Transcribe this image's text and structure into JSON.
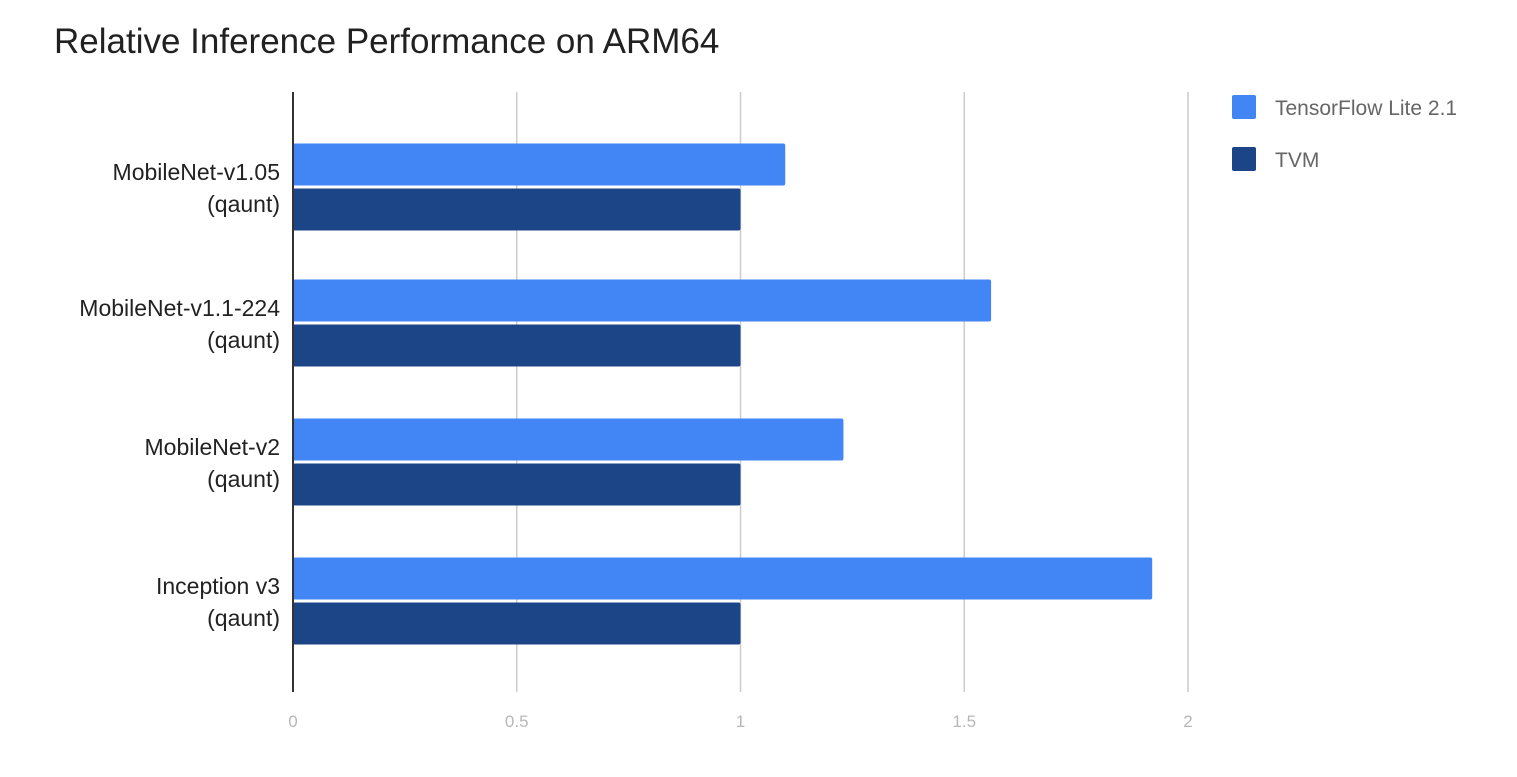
{
  "chart_data": {
    "type": "bar",
    "orientation": "horizontal",
    "title": "Relative Inference Performance on ARM64",
    "xlabel": "",
    "ylabel": "",
    "categories": [
      [
        "MobileNet-v1.05",
        "(qaunt)"
      ],
      [
        "MobileNet-v1.1-224",
        "(qaunt)"
      ],
      [
        "MobileNet-v2",
        "(qaunt)"
      ],
      [
        "Inception v3",
        "(qaunt)"
      ]
    ],
    "series": [
      {
        "name": "TensorFlow Lite 2.1",
        "color": "#4285f4",
        "values": [
          1.1,
          1.56,
          1.23,
          1.92
        ]
      },
      {
        "name": "TVM",
        "color": "#1c4587",
        "values": [
          1.0,
          1.0,
          1.0,
          1.0
        ]
      }
    ],
    "xlim": [
      0,
      2
    ],
    "xticks": [
      {
        "value": 0,
        "label": "0"
      },
      {
        "value": 0.5,
        "label": "0.5"
      },
      {
        "value": 1,
        "label": "1"
      },
      {
        "value": 1.5,
        "label": "1.5"
      },
      {
        "value": 2,
        "label": "2"
      }
    ],
    "grid": true,
    "legend_position": "top-right"
  }
}
